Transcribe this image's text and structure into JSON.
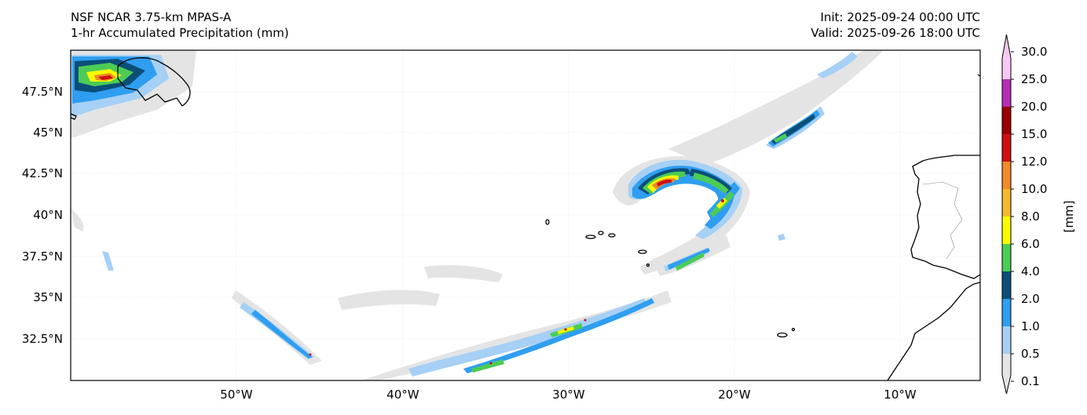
{
  "title": {
    "model": "NSF NCAR 3.75-km MPAS-A",
    "field": "1-hr Accumulated Precipitation (mm)",
    "init": "Init: 2025-09-24 00:00 UTC",
    "valid": "Valid: 2025-09-26 18:00 UTC"
  },
  "axes": {
    "lon_ticks": [
      "50°W",
      "40°W",
      "30°W",
      "20°W",
      "10°W"
    ],
    "lat_ticks": [
      "47.5°N",
      "45°N",
      "42.5°N",
      "40°N",
      "37.5°N",
      "35°N",
      "32.5°N"
    ]
  },
  "colorbar": {
    "label": "[mm]",
    "levels": [
      "0.1",
      "0.5",
      "1.0",
      "2.0",
      "4.0",
      "6.0",
      "8.0",
      "10.0",
      "12.0",
      "15.0",
      "20.0",
      "25.0",
      "30.0"
    ],
    "colors": [
      "#e4e4e4",
      "#a6d0f5",
      "#2f9ef0",
      "#0b4f78",
      "#4ccc55",
      "#fafa00",
      "#f4b92f",
      "#ef8b28",
      "#cf1010",
      "#9b0000",
      "#b52fb6",
      "#f7c8f5"
    ]
  }
}
